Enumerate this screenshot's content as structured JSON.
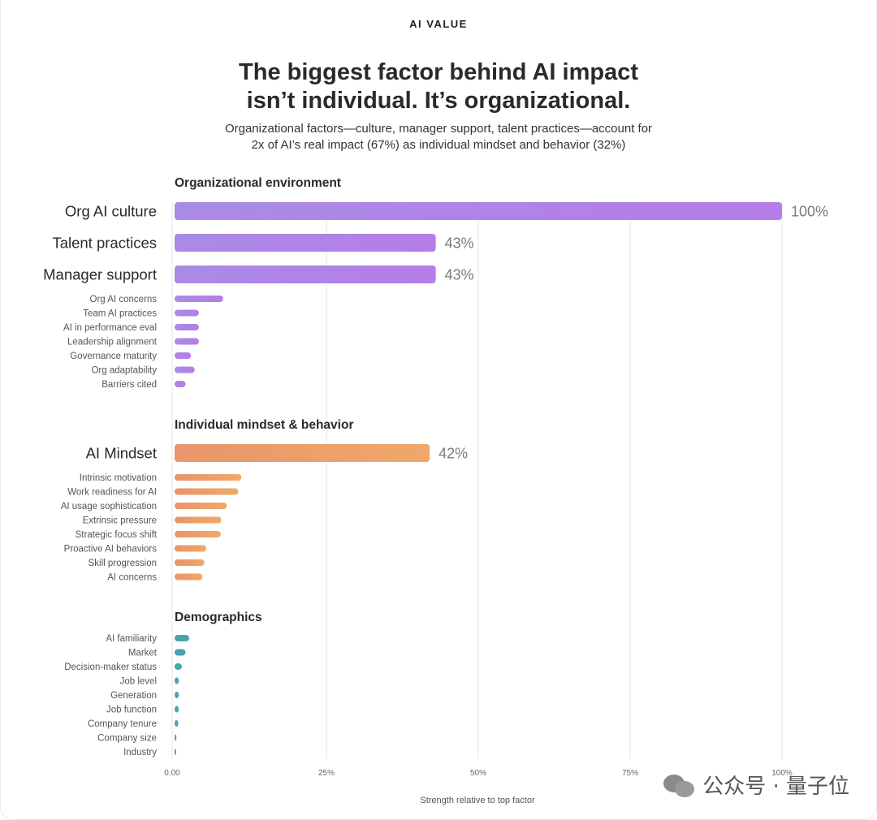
{
  "header": {
    "kicker": "AI VALUE",
    "title_line1": "The biggest factor behind AI impact",
    "title_line2": "isn’t individual. It’s organizational.",
    "subtitle_line1": "Organizational factors—culture, manager support, talent practices—account for",
    "subtitle_line2": "2x of AI’s real impact (67%) as individual mindset and behavior (32%)"
  },
  "watermark": {
    "text": "公众号 · 量子位",
    "icon": "wechat-icon"
  },
  "colors": {
    "org_start": "#a98be6",
    "org_end": "#b57de8",
    "indiv_start": "#e8956b",
    "indiv_end": "#efa86a",
    "demo": "#4aa3ad",
    "grid": "#e6e6e6",
    "label": "#555555",
    "value": "#7a7a7a"
  },
  "chart_data": {
    "type": "bar",
    "orientation": "horizontal",
    "xlabel": "Strength relative to top factor",
    "xlim": [
      0,
      100
    ],
    "xticks": [
      0,
      25,
      50,
      75,
      100
    ],
    "xtick_labels": [
      "0.00",
      "25%",
      "50%",
      "75%",
      "100%"
    ],
    "grid": true,
    "groups": [
      {
        "name": "Organizational environment",
        "color_key": "org",
        "items": [
          {
            "label": "Org AI culture",
            "value": 100,
            "major": true,
            "value_label": "100%"
          },
          {
            "label": "Talent practices",
            "value": 43,
            "major": true,
            "value_label": "43%"
          },
          {
            "label": "Manager support",
            "value": 43,
            "major": true,
            "value_label": "43%"
          },
          {
            "label": "Org AI concerns",
            "value": 8
          },
          {
            "label": "Team AI practices",
            "value": 4
          },
          {
            "label": "AI in performance eval",
            "value": 4
          },
          {
            "label": "Leadership alignment",
            "value": 4
          },
          {
            "label": "Governance maturity",
            "value": 2.7
          },
          {
            "label": "Org adaptability",
            "value": 3.3
          },
          {
            "label": "Barriers cited",
            "value": 1.8
          }
        ]
      },
      {
        "name": "Individual mindset & behavior",
        "color_key": "indiv",
        "items": [
          {
            "label": "AI Mindset",
            "value": 42,
            "major": true,
            "value_label": "42%"
          },
          {
            "label": "Intrinsic motivation",
            "value": 11
          },
          {
            "label": "Work readiness for AI",
            "value": 10.5
          },
          {
            "label": "AI usage sophistication",
            "value": 8.6
          },
          {
            "label": "Extrinsic pressure",
            "value": 7.7
          },
          {
            "label": "Strategic focus shift",
            "value": 7.6
          },
          {
            "label": "Proactive AI behaviors",
            "value": 5.2
          },
          {
            "label": "Skill progression",
            "value": 4.9
          },
          {
            "label": "AI concerns",
            "value": 4.6
          }
        ]
      },
      {
        "name": "Demographics",
        "color_key": "demo",
        "items": [
          {
            "label": "AI familiarity",
            "value": 2.4
          },
          {
            "label": "Market",
            "value": 1.8
          },
          {
            "label": "Decision-maker status",
            "value": 1.2
          },
          {
            "label": "Job level",
            "value": 0.7
          },
          {
            "label": "Generation",
            "value": 0.7
          },
          {
            "label": "Job function",
            "value": 0.7
          },
          {
            "label": "Company tenure",
            "value": 0.6
          },
          {
            "label": "Company size",
            "value": 0.3
          },
          {
            "label": "Industry",
            "value": 0.15
          }
        ]
      }
    ]
  }
}
